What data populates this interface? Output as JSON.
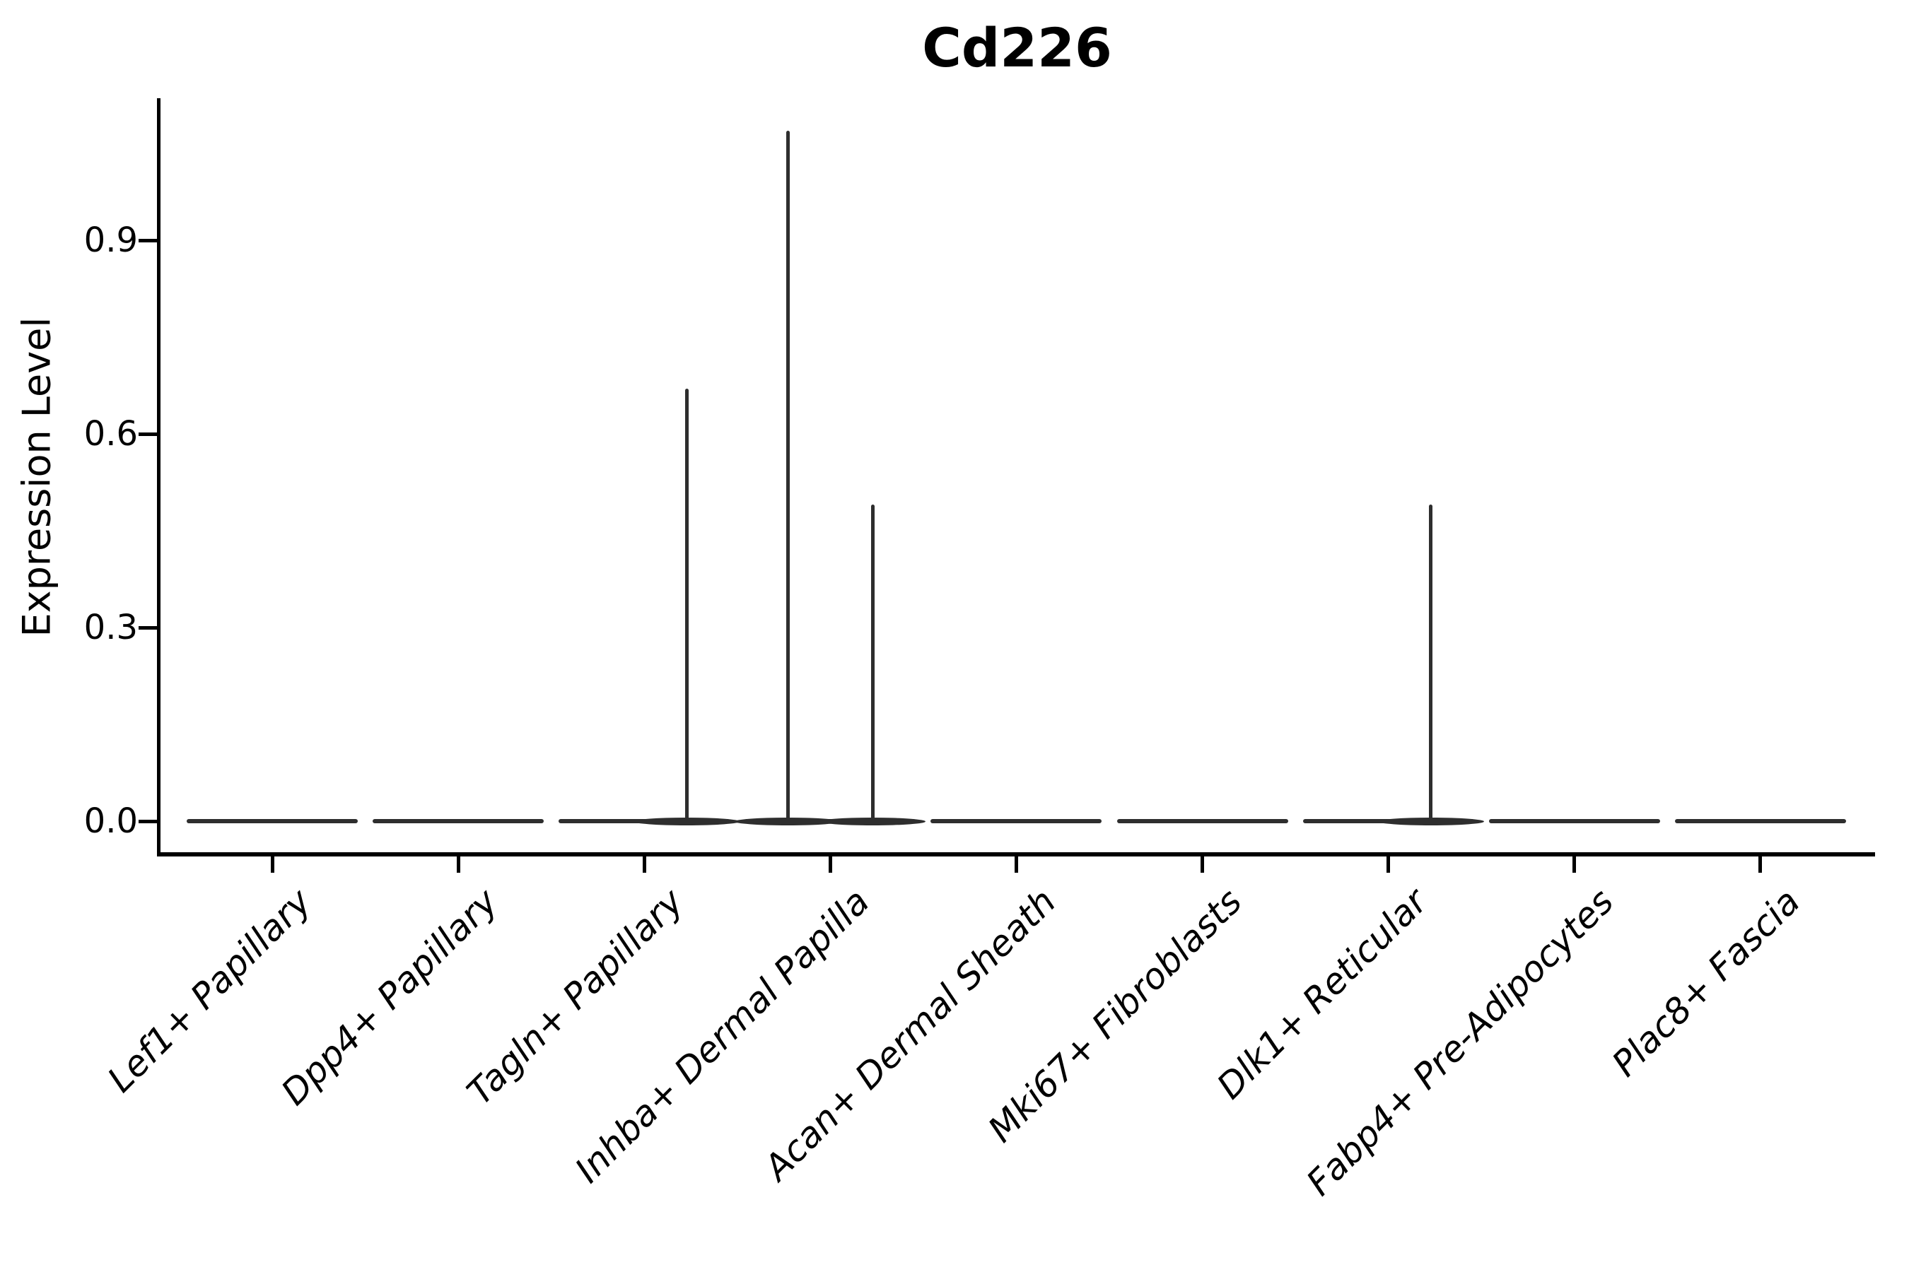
{
  "chart_data": {
    "type": "violin",
    "title": "Cd226",
    "xlabel": "",
    "ylabel": "Expression Level",
    "categories": [
      "Lef1+ Papillary",
      "Dpp4+ Papillary",
      "Tagln+ Papillary",
      "Inhba+ Dermal Papilla",
      "Acan+ Dermal Sheath",
      "Mki67+ Fibroblasts",
      "Dlk1+ Reticular",
      "Fabp4+ Pre-Adipocytes",
      "Plac8+ Fascia"
    ],
    "ytick_labels": [
      "0.0",
      "0.3",
      "0.6",
      "0.9"
    ],
    "ytick_values": [
      0.0,
      0.3,
      0.6,
      0.9
    ],
    "ylim": [
      -0.05,
      1.12
    ],
    "grid": false,
    "legend": "none",
    "violins": [
      {
        "category": "Lef1+ Papillary",
        "baseline_value": 0.0,
        "spikes": []
      },
      {
        "category": "Dpp4+ Papillary",
        "baseline_value": 0.0,
        "spikes": []
      },
      {
        "category": "Tagln+ Papillary",
        "baseline_value": 0.0,
        "spikes": [
          {
            "side": "right",
            "max_value": 0.67
          }
        ]
      },
      {
        "category": "Inhba+ Dermal Papilla",
        "baseline_value": 0.0,
        "spikes": [
          {
            "side": "left",
            "max_value": 1.07
          },
          {
            "side": "right",
            "max_value": 0.49
          }
        ]
      },
      {
        "category": "Acan+ Dermal Sheath",
        "baseline_value": 0.0,
        "spikes": []
      },
      {
        "category": "Mki67+ Fibroblasts",
        "baseline_value": 0.0,
        "spikes": []
      },
      {
        "category": "Dlk1+ Reticular",
        "baseline_value": 0.0,
        "spikes": [
          {
            "side": "right",
            "max_value": 0.49
          }
        ]
      },
      {
        "category": "Fabp4+ Pre-Adipocytes",
        "baseline_value": 0.0,
        "spikes": []
      },
      {
        "category": "Plac8+ Fascia",
        "baseline_value": 0.0,
        "spikes": []
      }
    ],
    "colors": {
      "violin": "#2e2e2e",
      "axis": "#000000",
      "text": "#000000"
    }
  }
}
